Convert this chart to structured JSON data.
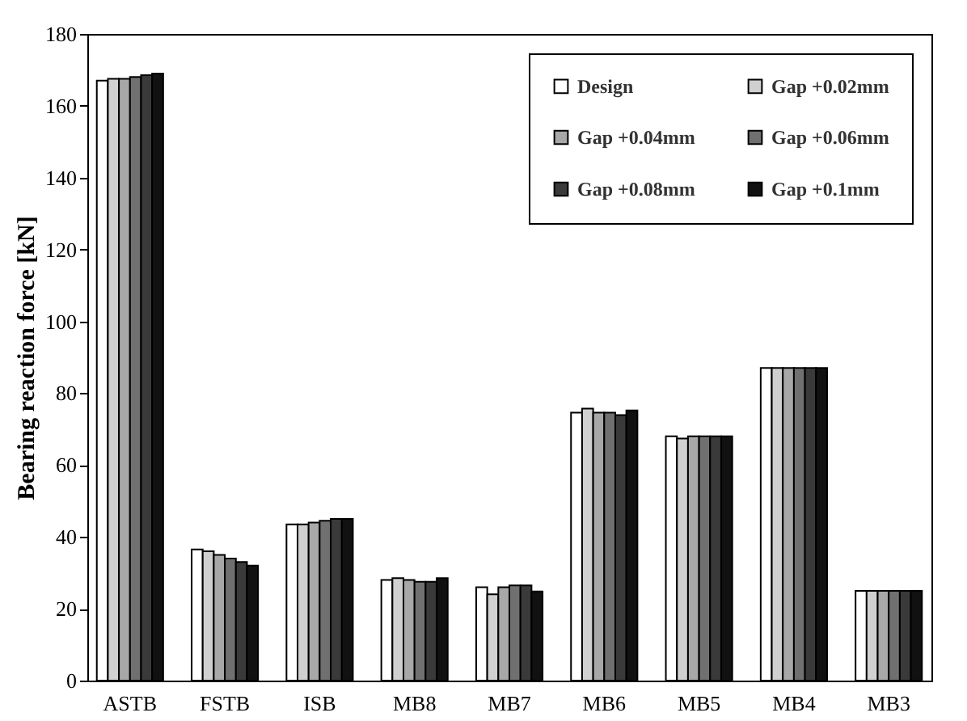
{
  "chart_data": {
    "type": "bar",
    "ylabel": "Bearing reaction force [kN]",
    "categories": [
      "ASTB",
      "FSTB",
      "ISB",
      "MB8",
      "MB7",
      "MB6",
      "MB5",
      "MB4",
      "MB3"
    ],
    "series": [
      {
        "name": "Design",
        "color": "#ffffff",
        "values": [
          167,
          36.5,
          43.5,
          28,
          26,
          74.6,
          68,
          87,
          25
        ]
      },
      {
        "name": "Gap +0.02mm",
        "color": "#d0d0d0",
        "values": [
          167.5,
          36,
          43.5,
          28.5,
          24,
          75.7,
          67.4,
          87,
          25
        ]
      },
      {
        "name": "Gap +0.04mm",
        "color": "#a8a8a8",
        "values": [
          167.5,
          35,
          44,
          28,
          26,
          74.6,
          68,
          87,
          25
        ]
      },
      {
        "name": "Gap +0.06mm",
        "color": "#707070",
        "values": [
          168,
          34,
          44.5,
          27.5,
          26.5,
          74.6,
          68,
          87,
          25
        ]
      },
      {
        "name": "Gap +0.08mm",
        "color": "#3a3a3a",
        "values": [
          168.5,
          33,
          45,
          27.5,
          26.5,
          73.9,
          68,
          87,
          25
        ]
      },
      {
        "name": "Gap +0.1mm",
        "color": "#111111",
        "values": [
          169,
          32,
          45,
          28.5,
          24.8,
          75.2,
          68,
          87,
          25
        ]
      }
    ],
    "ylim": [
      0,
      180
    ],
    "yticks": [
      0,
      20,
      40,
      60,
      80,
      100,
      120,
      140,
      160,
      180
    ],
    "grid": false,
    "legend": "top right"
  }
}
